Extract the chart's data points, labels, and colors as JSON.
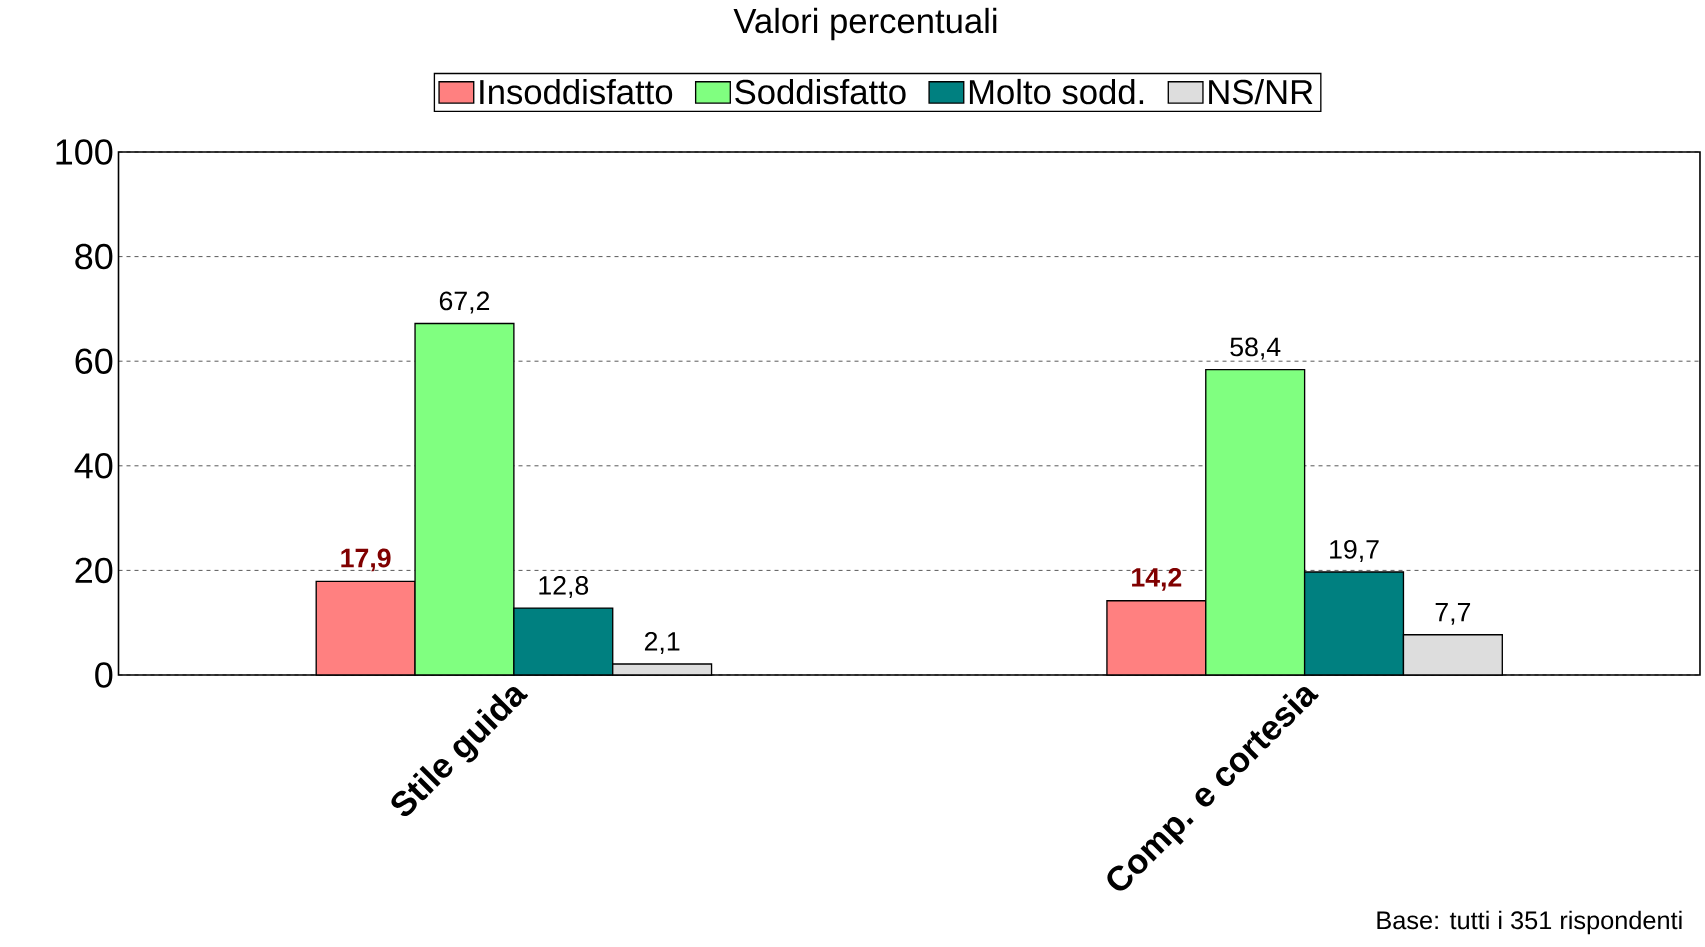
{
  "chart_data": {
    "type": "bar",
    "title": "Valori percentuali",
    "categories": [
      "Stile guida",
      "Comp. e cortesia"
    ],
    "series": [
      {
        "name": "Insoddisfatto",
        "color": "#ff8080",
        "values": [
          17.9,
          14.2
        ],
        "value_labels": [
          "17,9",
          "14,2"
        ]
      },
      {
        "name": "Soddisfatto",
        "color": "#80ff80",
        "values": [
          67.2,
          58.4
        ],
        "value_labels": [
          "67,2",
          "58,4"
        ]
      },
      {
        "name": "Molto sodd.",
        "color": "#008080",
        "values": [
          12.8,
          19.7
        ],
        "value_labels": [
          "12,8",
          "19,7"
        ]
      },
      {
        "name": "NS/NR",
        "color": "#dddddd",
        "values": [
          2.1,
          7.7
        ],
        "value_labels": [
          "2,1",
          "7,7"
        ]
      }
    ],
    "ylim": [
      0,
      100
    ],
    "yticks": [
      0,
      20,
      40,
      60,
      80,
      100
    ],
    "grid": "y",
    "legend": "top",
    "annotations": [
      "Base: tutti i 351 rispondenti"
    ]
  }
}
